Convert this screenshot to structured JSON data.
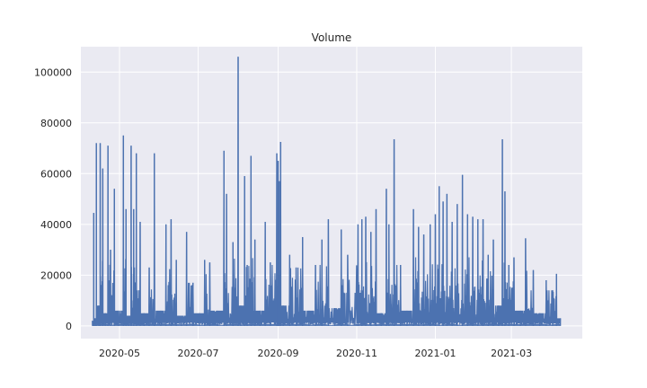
{
  "chart_data": {
    "type": "line",
    "title": "Volume",
    "xlabel": "",
    "ylabel": "",
    "x_range": [
      "2020-04-01",
      "2021-04-25"
    ],
    "ylim": [
      -5000,
      110000
    ],
    "x_ticks": [
      {
        "date": "2020-05-01",
        "label": "2020-05"
      },
      {
        "date": "2020-07-01",
        "label": "2020-07"
      },
      {
        "date": "2020-09-01",
        "label": "2020-09"
      },
      {
        "date": "2020-11-01",
        "label": "2020-11"
      },
      {
        "date": "2021-01-01",
        "label": "2021-01"
      },
      {
        "date": "2021-03-01",
        "label": "2021-03"
      }
    ],
    "y_ticks": [
      {
        "value": 0,
        "label": "0"
      },
      {
        "value": 20000,
        "label": "20000"
      },
      {
        "value": 40000,
        "label": "40000"
      },
      {
        "value": 60000,
        "label": "60000"
      },
      {
        "value": 80000,
        "label": "80000"
      },
      {
        "value": 100000,
        "label": "100000"
      }
    ],
    "grid": true,
    "series": [
      {
        "color": "#4c72b0",
        "note": "approximate reading of dense volume series; selected visible peaks",
        "points": [
          [
            "2020-04-10",
            2000
          ],
          [
            "2020-04-11",
            44500
          ],
          [
            "2020-04-12",
            3000
          ],
          [
            "2020-04-13",
            72000
          ],
          [
            "2020-04-15",
            8000
          ],
          [
            "2020-04-16",
            72000
          ],
          [
            "2020-04-18",
            62000
          ],
          [
            "2020-04-20",
            5000
          ],
          [
            "2020-04-22",
            71000
          ],
          [
            "2020-04-24",
            30000
          ],
          [
            "2020-04-27",
            54000
          ],
          [
            "2020-04-30",
            6000
          ],
          [
            "2020-05-04",
            75000
          ],
          [
            "2020-05-06",
            46000
          ],
          [
            "2020-05-08",
            4000
          ],
          [
            "2020-05-10",
            71000
          ],
          [
            "2020-05-12",
            46000
          ],
          [
            "2020-05-14",
            68000
          ],
          [
            "2020-05-17",
            41000
          ],
          [
            "2020-05-20",
            5000
          ],
          [
            "2020-05-24",
            23000
          ],
          [
            "2020-05-28",
            68000
          ],
          [
            "2020-06-02",
            6000
          ],
          [
            "2020-06-06",
            40000
          ],
          [
            "2020-06-10",
            42000
          ],
          [
            "2020-06-14",
            26000
          ],
          [
            "2020-06-18",
            4000
          ],
          [
            "2020-06-22",
            37000
          ],
          [
            "2020-06-27",
            17000
          ],
          [
            "2020-07-02",
            5000
          ],
          [
            "2020-07-06",
            26000
          ],
          [
            "2020-07-10",
            25000
          ],
          [
            "2020-07-16",
            6000
          ],
          [
            "2020-07-21",
            69000
          ],
          [
            "2020-07-23",
            52000
          ],
          [
            "2020-07-28",
            33000
          ],
          [
            "2020-08-01",
            106000
          ],
          [
            "2020-08-03",
            8000
          ],
          [
            "2020-08-06",
            59000
          ],
          [
            "2020-08-08",
            24000
          ],
          [
            "2020-08-11",
            67000
          ],
          [
            "2020-08-14",
            34000
          ],
          [
            "2020-08-18",
            6000
          ],
          [
            "2020-08-22",
            41000
          ],
          [
            "2020-08-26",
            25000
          ],
          [
            "2020-08-31",
            68000
          ],
          [
            "2020-09-01",
            65000
          ],
          [
            "2020-09-02",
            57000
          ],
          [
            "2020-09-03",
            72500
          ],
          [
            "2020-09-05",
            8000
          ],
          [
            "2020-09-10",
            28000
          ],
          [
            "2020-09-15",
            23000
          ],
          [
            "2020-09-20",
            35000
          ],
          [
            "2020-09-25",
            6000
          ],
          [
            "2020-09-30",
            24000
          ],
          [
            "2020-10-05",
            34000
          ],
          [
            "2020-10-10",
            42000
          ],
          [
            "2020-10-15",
            7000
          ],
          [
            "2020-10-20",
            38000
          ],
          [
            "2020-10-25",
            28000
          ],
          [
            "2020-11-02",
            40000
          ],
          [
            "2020-11-05",
            42000
          ],
          [
            "2020-11-08",
            43000
          ],
          [
            "2020-11-12",
            37000
          ],
          [
            "2020-11-16",
            46000
          ],
          [
            "2020-11-20",
            5000
          ],
          [
            "2020-11-24",
            54000
          ],
          [
            "2020-11-26",
            40000
          ],
          [
            "2020-11-30",
            73500
          ],
          [
            "2020-12-05",
            24000
          ],
          [
            "2020-12-10",
            6000
          ],
          [
            "2020-12-15",
            46000
          ],
          [
            "2020-12-19",
            39000
          ],
          [
            "2020-12-23",
            36000
          ],
          [
            "2020-12-28",
            40000
          ],
          [
            "2021-01-01",
            44000
          ],
          [
            "2021-01-04",
            55000
          ],
          [
            "2021-01-07",
            49000
          ],
          [
            "2021-01-10",
            52000
          ],
          [
            "2021-01-14",
            41000
          ],
          [
            "2021-01-18",
            48000
          ],
          [
            "2021-01-22",
            59500
          ],
          [
            "2021-01-26",
            44000
          ],
          [
            "2021-01-30",
            43000
          ],
          [
            "2021-02-03",
            42000
          ],
          [
            "2021-02-07",
            42000
          ],
          [
            "2021-02-11",
            28000
          ],
          [
            "2021-02-15",
            34000
          ],
          [
            "2021-02-19",
            8000
          ],
          [
            "2021-02-22",
            73500
          ],
          [
            "2021-02-24",
            53000
          ],
          [
            "2021-02-27",
            24000
          ],
          [
            "2021-03-03",
            27000
          ],
          [
            "2021-03-08",
            6000
          ],
          [
            "2021-03-12",
            34500
          ],
          [
            "2021-03-18",
            22000
          ],
          [
            "2021-03-23",
            5000
          ],
          [
            "2021-03-28",
            18000
          ],
          [
            "2021-04-02",
            14000
          ],
          [
            "2021-04-05",
            20500
          ],
          [
            "2021-04-08",
            3000
          ]
        ]
      }
    ]
  }
}
